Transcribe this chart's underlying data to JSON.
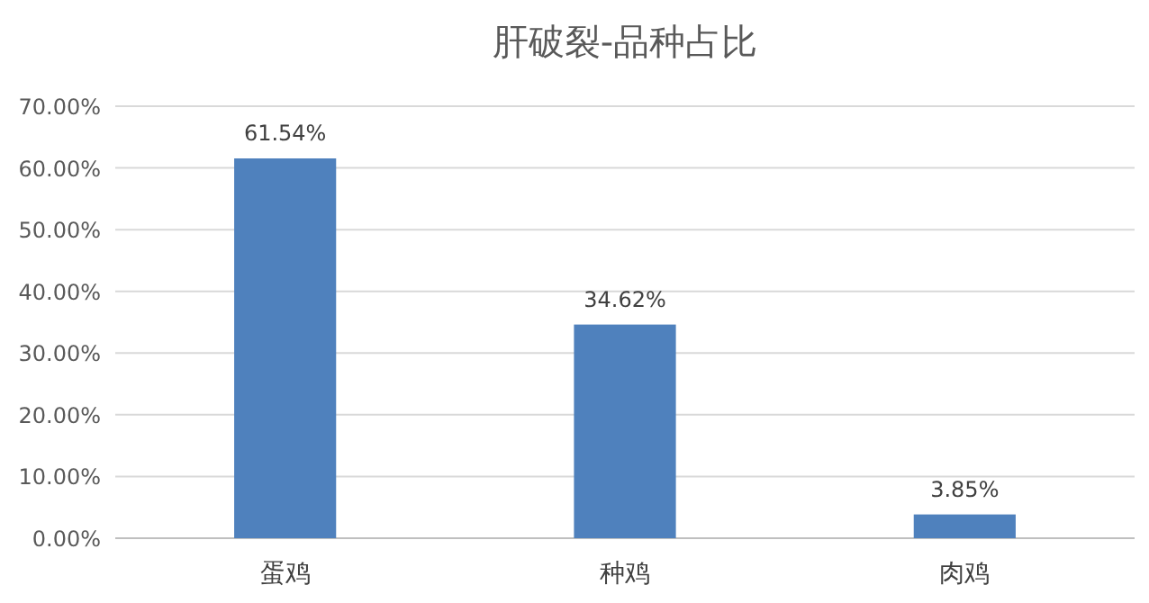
{
  "chart_data": {
    "type": "bar",
    "title": "肝破裂-品种占比",
    "categories": [
      "蛋鸡",
      "种鸡",
      "肉鸡"
    ],
    "values": [
      61.54,
      34.62,
      3.85
    ],
    "value_labels": [
      "61.54%",
      "34.62%",
      "3.85%"
    ],
    "color": "#4f81bd",
    "ylim": [
      0,
      70
    ],
    "yticks": [
      {
        "value": 0,
        "label": "0.00%"
      },
      {
        "value": 10,
        "label": "10.00%"
      },
      {
        "value": 20,
        "label": "20.00%"
      },
      {
        "value": 30,
        "label": "30.00%"
      },
      {
        "value": 40,
        "label": "40.00%"
      },
      {
        "value": 50,
        "label": "50.00%"
      },
      {
        "value": 60,
        "label": "60.00%"
      },
      {
        "value": 70,
        "label": "70.00%"
      }
    ],
    "grid": "y"
  }
}
